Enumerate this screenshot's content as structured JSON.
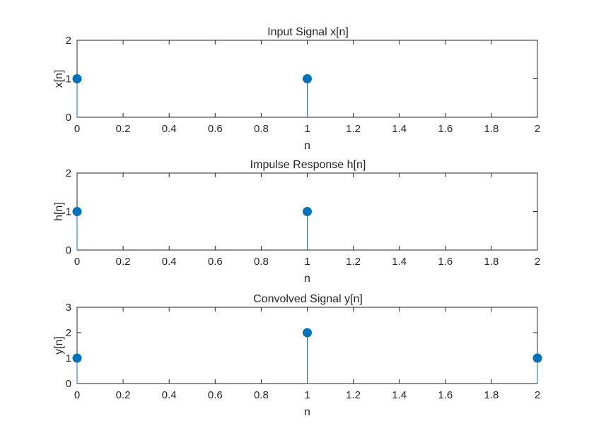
{
  "chart_data": [
    {
      "type": "stem",
      "title": "Input Signal x[n]",
      "xlabel": "n",
      "ylabel": "x[n]",
      "x": [
        0,
        1
      ],
      "y": [
        1,
        1
      ],
      "xlim": [
        0,
        2
      ],
      "ylim": [
        0,
        2
      ],
      "xticks": [
        "0",
        "0.2",
        "0.4",
        "0.6",
        "0.8",
        "1",
        "1.2",
        "1.4",
        "1.6",
        "1.8",
        "2"
      ],
      "yticks": [
        "0",
        "1",
        "2"
      ],
      "grid": false,
      "color": "#0072BD"
    },
    {
      "type": "stem",
      "title": "Impulse Response h[n]",
      "xlabel": "n",
      "ylabel": "h[n]",
      "x": [
        0,
        1
      ],
      "y": [
        1,
        1
      ],
      "xlim": [
        0,
        2
      ],
      "ylim": [
        0,
        2
      ],
      "xticks": [
        "0",
        "0.2",
        "0.4",
        "0.6",
        "0.8",
        "1",
        "1.2",
        "1.4",
        "1.6",
        "1.8",
        "2"
      ],
      "yticks": [
        "0",
        "1",
        "2"
      ],
      "grid": false,
      "color": "#0072BD"
    },
    {
      "type": "stem",
      "title": "Convolved Signal y[n]",
      "xlabel": "n",
      "ylabel": "y[n]",
      "x": [
        0,
        1,
        2
      ],
      "y": [
        1,
        2,
        1
      ],
      "xlim": [
        0,
        2
      ],
      "ylim": [
        0,
        3
      ],
      "xticks": [
        "0",
        "0.2",
        "0.4",
        "0.6",
        "0.8",
        "1",
        "1.2",
        "1.4",
        "1.6",
        "1.8",
        "2"
      ],
      "yticks": [
        "0",
        "1",
        "2",
        "3"
      ],
      "grid": false,
      "color": "#0072BD"
    }
  ]
}
